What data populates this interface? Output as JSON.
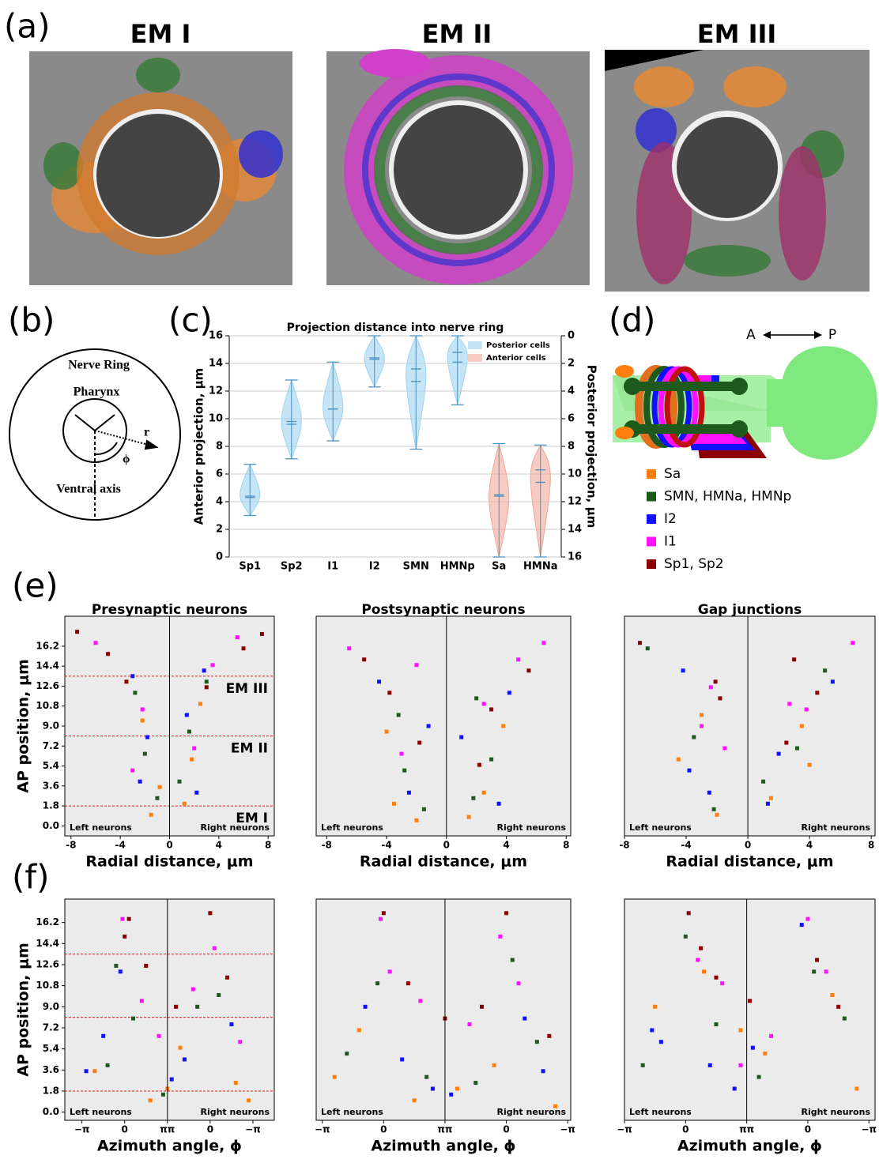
{
  "panel_labels": [
    "(a)",
    "(b)",
    "(c)",
    "(d)",
    "(e)",
    "(f)"
  ],
  "em_titles": [
    "EM I",
    "EM II",
    "EM III"
  ],
  "diagram_b": {
    "labels": [
      "Nerve Ring",
      "Pharynx",
      "r",
      "ϕ",
      "Ventral axis"
    ]
  },
  "diagram_d": {
    "anterior": "A",
    "posterior": "P",
    "legend": [
      {
        "name": "Sa",
        "color": "#ff7f0e"
      },
      {
        "name": "SMN, HMNa, HMNp",
        "color": "#1e5a1e"
      },
      {
        "name": "I2",
        "color": "#1010ff"
      },
      {
        "name": "I1",
        "color": "#ff10ff"
      },
      {
        "name": "Sp1, Sp2",
        "color": "#8b0000"
      }
    ]
  },
  "chart_data": [
    {
      "type": "violin",
      "title": "Projection distance into nerve ring",
      "ylabel": "Anterior projection, μm",
      "y2label": "Posterior projection, μm",
      "categories": [
        "Sp1",
        "Sp2",
        "I1",
        "I2",
        "SMN",
        "HMNp",
        "Sa",
        "HMNa"
      ],
      "ylim": [
        0,
        16
      ],
      "yticks": [
        0,
        2,
        4,
        6,
        8,
        10,
        12,
        14,
        16
      ],
      "y2lim": [
        16,
        0
      ],
      "y2ticks": [
        0,
        2,
        4,
        6,
        8,
        10,
        12,
        14,
        16
      ],
      "grid": true,
      "legend": "upper right",
      "series": [
        {
          "name": "Posterior cells",
          "color": "#9fd3f0",
          "min": [
            3,
            7.1,
            8.4,
            12.3,
            7.8,
            11,
            null,
            null
          ],
          "max": [
            6.7,
            12.8,
            14.1,
            16,
            16,
            16,
            null,
            null
          ],
          "mean": [
            4.4,
            9.8,
            10.7,
            14.4,
            13.6,
            14.8,
            null,
            null
          ],
          "median": [
            4.3,
            9.6,
            10.7,
            14.3,
            12.7,
            14.1,
            null,
            null
          ]
        },
        {
          "name": "Anterior cells",
          "color": "#f0a898",
          "axis": "y2",
          "min": [
            null,
            null,
            null,
            null,
            null,
            null,
            7.8,
            7.9
          ],
          "max": [
            null,
            null,
            null,
            null,
            null,
            null,
            16,
            16
          ],
          "mean": [
            null,
            null,
            null,
            null,
            null,
            null,
            11.6,
            9.7
          ],
          "median": [
            null,
            null,
            null,
            null,
            null,
            null,
            11.5,
            10.6
          ]
        }
      ]
    },
    {
      "type": "scatter",
      "title": "Presynaptic neurons",
      "xlabel": "Radial distance, μm",
      "ylabel": "AP position, μm",
      "xlim": [
        -8.5,
        8.5
      ],
      "xticks": [
        -8,
        -4,
        0,
        4,
        8
      ],
      "ylim": [
        -0.9,
        18.9
      ],
      "yticks": [
        {
          "value": 0,
          "label": "0.0"
        },
        1.8,
        3.6,
        5.4,
        7.2,
        {
          "value": 9,
          "label": "9.0"
        },
        10.8,
        12.6,
        14.4,
        16.2
      ],
      "vline": 0,
      "left_text": "Left neurons",
      "right_text": "Right neurons",
      "hlines": [
        {
          "y": 13.5,
          "label": "EM III"
        },
        {
          "y": 8.1,
          "label": "EM II"
        },
        {
          "y": 1.8,
          "label": "EM I"
        }
      ],
      "series": [
        {
          "color": "#ff7f0e",
          "x": [
            -1.5,
            -0.8,
            1.2,
            1.8,
            -2.2,
            2.5
          ],
          "y": [
            1,
            3.5,
            2,
            6,
            9.5,
            11
          ]
        },
        {
          "color": "#1e5a1e",
          "x": [
            -1,
            -2,
            0.8,
            1.6,
            -2.8,
            3
          ],
          "y": [
            2.5,
            6.5,
            4,
            8.5,
            12,
            13
          ]
        },
        {
          "color": "#1010ff",
          "x": [
            -2.4,
            -1.8,
            2.2,
            1.4,
            -3,
            2.8
          ],
          "y": [
            4,
            8,
            3,
            10,
            13.5,
            14
          ]
        },
        {
          "color": "#ff10ff",
          "x": [
            -3,
            -2.2,
            2,
            3.5,
            -6,
            5.5
          ],
          "y": [
            5,
            10.5,
            7,
            14.5,
            16.5,
            17
          ]
        },
        {
          "color": "#8b0000",
          "x": [
            -3.5,
            -5,
            3,
            6,
            -7.5,
            7.5
          ],
          "y": [
            13,
            15.5,
            12.5,
            16,
            17.5,
            17.3
          ]
        }
      ]
    },
    {
      "type": "scatter",
      "title": "Postsynaptic neurons",
      "xlabel": "Radial distance, μm",
      "xlim": [
        -8.7,
        8.3
      ],
      "xticks": [
        -8,
        -4,
        0,
        4,
        8
      ],
      "ylim": [
        -0.9,
        18.9
      ],
      "vline": 0,
      "left_text": "Left neurons",
      "right_text": "Right neurons",
      "series": [
        {
          "color": "#ff7f0e",
          "x": [
            -2,
            -3.5,
            1.5,
            2.5,
            -4,
            3.8
          ],
          "y": [
            0.5,
            2,
            0.8,
            3,
            8.5,
            9
          ]
        },
        {
          "color": "#1e5a1e",
          "x": [
            -1.5,
            -2.8,
            1.8,
            3,
            -3.2,
            2
          ],
          "y": [
            1.5,
            5,
            2.5,
            6,
            10,
            11.5
          ]
        },
        {
          "color": "#1010ff",
          "x": [
            -2.5,
            -1.2,
            3.5,
            1,
            -4.5,
            4.2
          ],
          "y": [
            3,
            9,
            2,
            8,
            13,
            12
          ]
        },
        {
          "color": "#ff10ff",
          "x": [
            -3,
            -6.5,
            2.5,
            6.5,
            -2,
            4.8
          ],
          "y": [
            6.5,
            16,
            11,
            16.5,
            14.5,
            15
          ]
        },
        {
          "color": "#8b0000",
          "x": [
            -3.8,
            -5.5,
            3,
            5.5,
            -1.8,
            2.2
          ],
          "y": [
            12,
            15,
            10.5,
            14,
            7.5,
            5.5
          ]
        }
      ]
    },
    {
      "type": "scatter",
      "title": "Gap junctions",
      "xlabel": "Radial distance, μm",
      "xlim": [
        -8,
        8.25
      ],
      "xticks": [
        -8,
        -4,
        0,
        4,
        8
      ],
      "ylim": [
        -0.9,
        18.9
      ],
      "vline": 0,
      "left_text": "Left neurons",
      "right_text": "Right neurons",
      "series": [
        {
          "color": "#ff7f0e",
          "x": [
            -4.5,
            -2,
            1.5,
            4,
            -3,
            3.5
          ],
          "y": [
            6,
            1,
            2.5,
            5.5,
            10,
            9
          ]
        },
        {
          "color": "#1e5a1e",
          "x": [
            -6.5,
            -3.5,
            1,
            3.2,
            -2.2,
            5
          ],
          "y": [
            16,
            8,
            4,
            7,
            1.5,
            14
          ]
        },
        {
          "color": "#1010ff",
          "x": [
            -3.8,
            -2.5,
            2,
            5.5,
            -4.2,
            1.3
          ],
          "y": [
            5,
            3,
            6.5,
            13,
            14,
            2
          ]
        },
        {
          "color": "#ff10ff",
          "x": [
            -3,
            -2.4,
            2.7,
            6.8,
            -1.5,
            3.8
          ],
          "y": [
            9,
            12.5,
            11,
            16.5,
            7,
            10.5
          ]
        },
        {
          "color": "#8b0000",
          "x": [
            -7,
            -1.8,
            2.5,
            4.5,
            -2.1,
            3
          ],
          "y": [
            16.5,
            11.5,
            7.5,
            12,
            13,
            15
          ]
        }
      ]
    },
    {
      "type": "scatter",
      "xlabel": "Azimuth angle, ϕ",
      "ylabel": "AP position, μm",
      "xlim": [
        -0.4,
        4.5
      ],
      "xticks": [
        {
          "value": 0,
          "label": "−π"
        },
        {
          "value": 1,
          "label": "0"
        },
        {
          "value": 2,
          "label": "ππ"
        },
        {
          "value": 3,
          "label": "0"
        },
        {
          "value": 4,
          "label": "−π"
        }
      ],
      "ylim": [
        -0.7,
        18.2
      ],
      "yticks": [
        {
          "value": 0,
          "label": "0.0"
        },
        1.8,
        3.6,
        5.4,
        7.2,
        {
          "value": 9,
          "label": "9.0"
        },
        10.8,
        12.6,
        14.4,
        16.2
      ],
      "vline": 2,
      "left_text": "Left neurons",
      "right_text": "Right neurons",
      "hlines": [
        {
          "y": 13.5
        },
        {
          "y": 8.1
        },
        {
          "y": 1.8
        }
      ],
      "series": [
        {
          "color": "#ff7f0e",
          "x": [
            1.6,
            2,
            2.3,
            0.3,
            3.6,
            3.9
          ],
          "y": [
            1,
            2,
            5.5,
            3.5,
            2.5,
            1
          ]
        },
        {
          "color": "#1e5a1e",
          "x": [
            1.2,
            0.6,
            2.7,
            3.2,
            1.9,
            0.8
          ],
          "y": [
            8,
            4,
            9,
            10,
            1.5,
            12.5
          ]
        },
        {
          "color": "#1010ff",
          "x": [
            0.1,
            0.5,
            2.1,
            2.4,
            3.5,
            0.9
          ],
          "y": [
            3.5,
            6.5,
            2.8,
            4.5,
            7.5,
            12
          ]
        },
        {
          "color": "#ff10ff",
          "x": [
            1.4,
            1.8,
            2.6,
            3.1,
            3.7,
            0.95
          ],
          "y": [
            9.5,
            6.5,
            10.5,
            14,
            6,
            16.5
          ]
        },
        {
          "color": "#8b0000",
          "x": [
            1.1,
            1.5,
            2.2,
            3,
            3.4,
            1
          ],
          "y": [
            16.5,
            12.5,
            9,
            17,
            11.5,
            15
          ]
        }
      ]
    },
    {
      "type": "scatter",
      "xlabel": "Azimuth angle, ϕ",
      "xlim": [
        -0.1,
        4.05
      ],
      "xticks": [
        {
          "value": 0,
          "label": "−π"
        },
        {
          "value": 1,
          "label": "0"
        },
        {
          "value": 2,
          "label": "ππ"
        },
        {
          "value": 3,
          "label": "0"
        },
        {
          "value": 4,
          "label": "−π"
        }
      ],
      "ylim": [
        -0.7,
        18.2
      ],
      "vline": 2,
      "left_text": "Left neurons",
      "right_text": "Right neurons",
      "series": [
        {
          "color": "#ff7f0e",
          "x": [
            0.2,
            1.5,
            2.2,
            2.8,
            3.8,
            0.6
          ],
          "y": [
            3,
            1,
            2,
            4,
            0.5,
            7
          ]
        },
        {
          "color": "#1e5a1e",
          "x": [
            0.9,
            0.4,
            1.7,
            3.1,
            3.5,
            2.5
          ],
          "y": [
            11,
            5,
            3,
            13,
            6,
            2.5
          ]
        },
        {
          "color": "#1010ff",
          "x": [
            0.7,
            1.3,
            2.1,
            3.3,
            3.6,
            1.8
          ],
          "y": [
            9,
            4.5,
            1.5,
            8,
            3.5,
            2
          ]
        },
        {
          "color": "#ff10ff",
          "x": [
            1.1,
            1.6,
            2.4,
            2.9,
            3.2,
            0.95
          ],
          "y": [
            12,
            9.5,
            7.5,
            15,
            11,
            16.5
          ]
        },
        {
          "color": "#8b0000",
          "x": [
            1,
            1.4,
            2,
            2.6,
            3,
            3.7
          ],
          "y": [
            17,
            11,
            8,
            9,
            17,
            6.5
          ]
        }
      ]
    },
    {
      "type": "scatter",
      "xlabel": "Azimuth angle, ϕ",
      "xlim": [
        0,
        4.1
      ],
      "xticks": [
        {
          "value": 0,
          "label": "−π"
        },
        {
          "value": 1,
          "label": "0"
        },
        {
          "value": 2,
          "label": "ππ"
        },
        {
          "value": 3,
          "label": "0"
        },
        {
          "value": 4,
          "label": "−π"
        }
      ],
      "ylim": [
        -0.7,
        18.2
      ],
      "vline": 2,
      "left_text": "Left neurons",
      "right_text": "Right neurons",
      "series": [
        {
          "color": "#ff7f0e",
          "x": [
            0.5,
            1.3,
            2.3,
            3.4,
            3.8,
            1.9
          ],
          "y": [
            9,
            12,
            5,
            10,
            2,
            7
          ]
        },
        {
          "color": "#1e5a1e",
          "x": [
            0.3,
            1,
            1.5,
            2.2,
            3.1,
            3.6
          ],
          "y": [
            4,
            15,
            7.5,
            3,
            12,
            8
          ]
        },
        {
          "color": "#1010ff",
          "x": [
            0.6,
            1.4,
            2.1,
            1.8,
            2.9,
            0.45
          ],
          "y": [
            6,
            4,
            5.5,
            2,
            16,
            7
          ]
        },
        {
          "color": "#ff10ff",
          "x": [
            1.2,
            1.6,
            2.4,
            3,
            3.3,
            1.9
          ],
          "y": [
            13,
            11,
            6.5,
            16.5,
            12,
            4
          ]
        },
        {
          "color": "#8b0000",
          "x": [
            1.05,
            1.5,
            2.05,
            3.15,
            3.5,
            1.25
          ],
          "y": [
            17,
            11.5,
            9.5,
            13,
            9,
            14
          ]
        }
      ]
    }
  ]
}
